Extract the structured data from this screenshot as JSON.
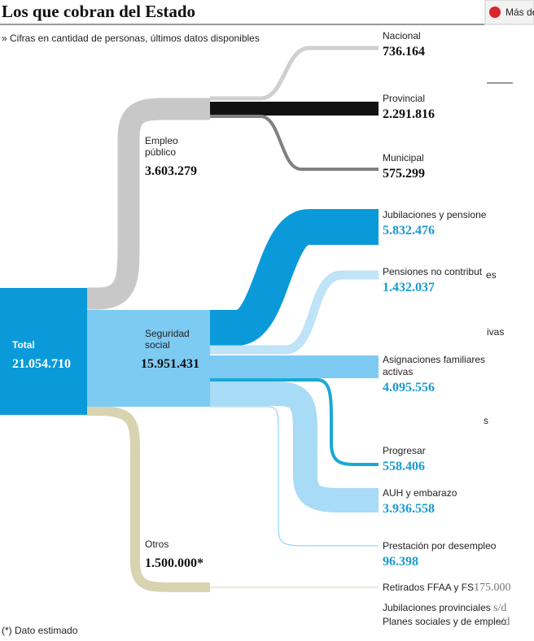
{
  "header": {
    "title": "Los que cobran del Estado",
    "subtitle": "» Cifras en cantidad de personas, últimos datos disponibles"
  },
  "nodes": {
    "total": {
      "label": "Total",
      "value": "21.054.710"
    },
    "empleo": {
      "lines": [
        "Empleo",
        "público"
      ],
      "value": "3.603.279"
    },
    "seguridad": {
      "lines": [
        "Seguridad",
        "social"
      ],
      "value": "15.951.431"
    },
    "otros": {
      "label": "Otros",
      "value": "1.500.000*"
    },
    "nacional": {
      "label": "Nacional",
      "value": "736.164"
    },
    "provincial": {
      "label": "Provincial",
      "value": "2.291.816"
    },
    "municipal": {
      "label": "Municipal",
      "value": "575.299"
    },
    "jubilaciones": {
      "label": "Jubilaciones y pensione",
      "value": "5.832.476"
    },
    "pensiones": {
      "label": "Pensiones no contribut",
      "value": "1.432.037"
    },
    "asignaciones": {
      "lines": [
        "Asignaciones familiares",
        "activas"
      ],
      "value": "4.095.556"
    },
    "progresar": {
      "label": "Progresar",
      "value": "558.406"
    },
    "auh": {
      "label": "AUH y embarazo",
      "value": "3.936.558"
    },
    "prestacion": {
      "label": "Prestación por desempleo",
      "value": "96.398"
    },
    "retirados": {
      "label": "Retirados FFAA y FS",
      "value": "175.000"
    },
    "jubprov": {
      "label": "Jubilaciones provinciales",
      "value": "s/d"
    },
    "planes": {
      "label": "Planes sociales y de empleo",
      "value": "s/d"
    }
  },
  "footnote": "(*) Dato estimado",
  "button": "Más de",
  "fragments": [
    "es",
    "ivas",
    "s"
  ]
}
